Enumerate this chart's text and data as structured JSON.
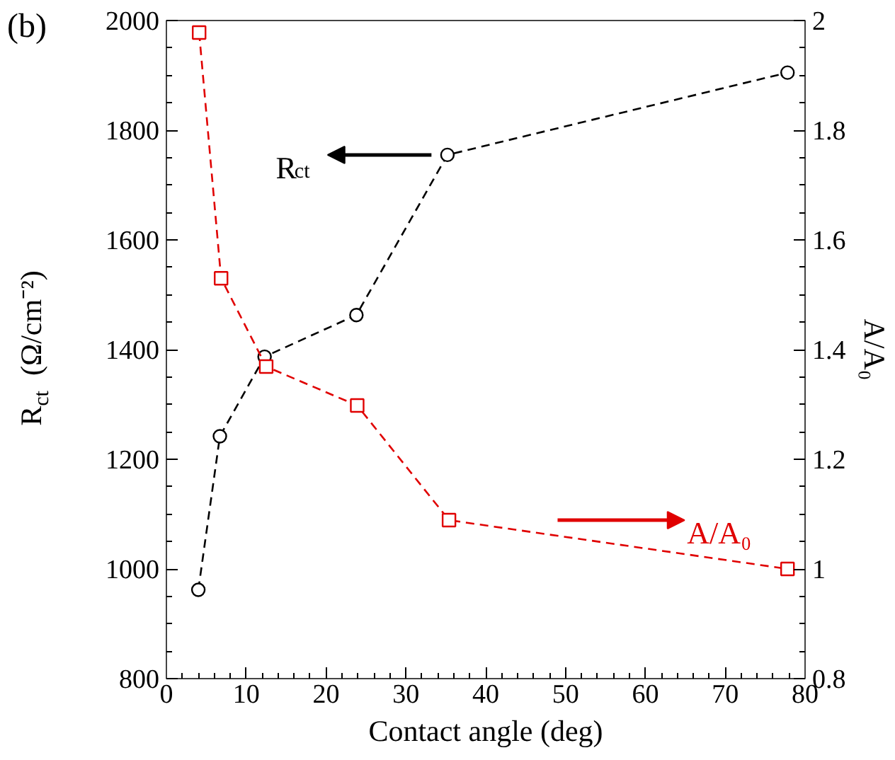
{
  "chart_data": {
    "type": "line",
    "xlabel": "Contact angle (deg)",
    "ylabel": "R$_{ct}$  (Ω/cm⁻²)",
    "y2label": "A/A₀",
    "annotations": [
      "(b)"
    ],
    "series": [
      {
        "name": "R$_{ct}$",
        "color": "#000000",
        "marker": "circle",
        "x": [
          4.0,
          6.7,
          12.3,
          23.8,
          35.2,
          77.8
        ],
        "values": [
          962,
          1242,
          1387,
          1463,
          1755,
          1905
        ]
      },
      {
        "name": "A/A₀",
        "color": "#e00000",
        "marker": "square",
        "axis": "y2",
        "x": [
          4.1,
          6.85,
          12.5,
          23.9,
          35.4,
          77.8
        ],
        "values": [
          1.978,
          1.53,
          1.369,
          1.298,
          1.089,
          1.0
        ]
      }
    ],
    "xlim": [
      0,
      80
    ],
    "xticks": [
      0,
      10,
      20,
      30,
      40,
      50,
      60,
      70,
      80
    ],
    "ylim": [
      800,
      2000
    ],
    "yticks": [
      800,
      1000,
      1200,
      1400,
      1600,
      1800,
      2000
    ],
    "y2lim": [
      0.8,
      2
    ],
    "y2ticks": [
      0.8,
      1,
      1.2,
      1.4,
      1.6,
      1.8,
      2
    ],
    "line_style": "dashed",
    "grid": false
  }
}
